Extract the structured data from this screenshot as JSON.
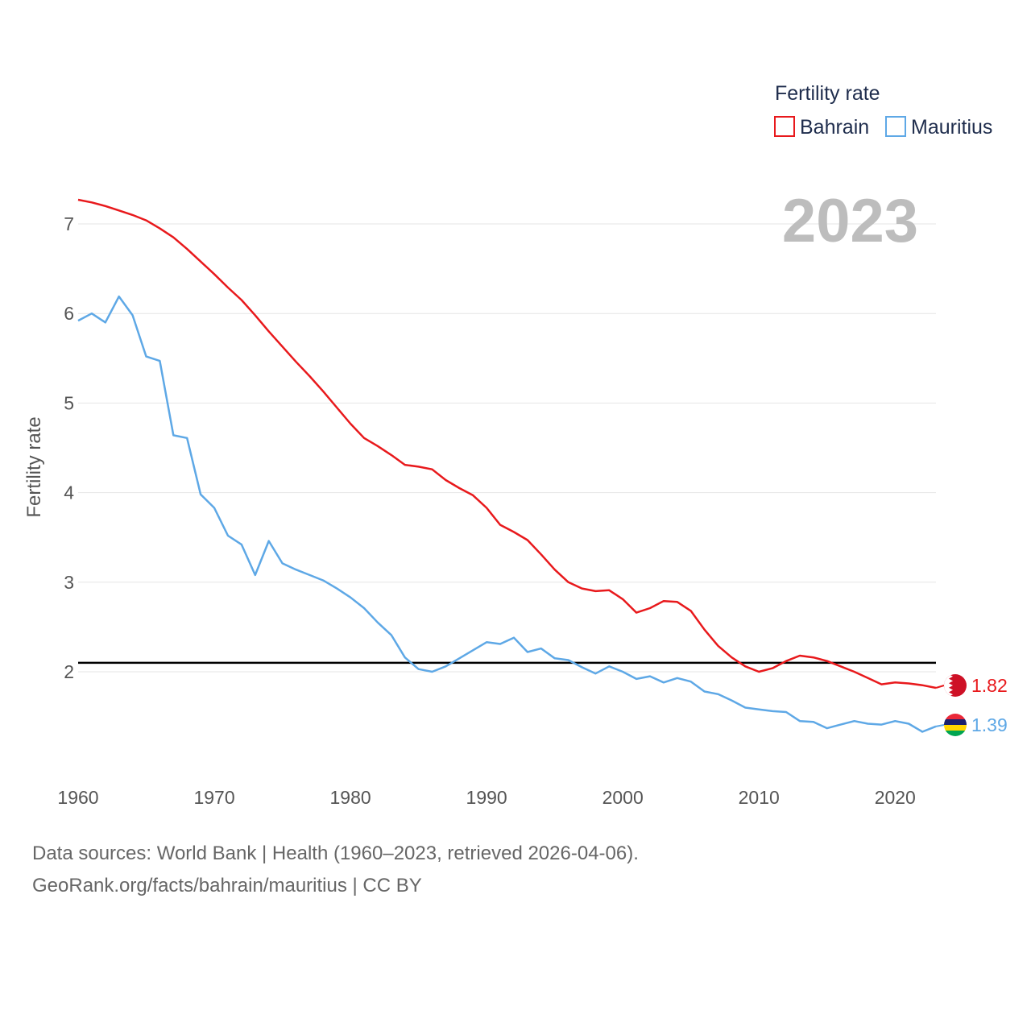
{
  "chart_data": {
    "type": "line",
    "title": "",
    "year_overlay": "2023",
    "legend_title": "Fertility rate",
    "xlabel": "",
    "ylabel": "Fertility rate",
    "xlim": [
      1960,
      2023
    ],
    "ylim": [
      1.0,
      7.5
    ],
    "x_ticks": [
      1960,
      1970,
      1980,
      1990,
      2000,
      2010,
      2020
    ],
    "y_ticks": [
      2,
      3,
      4,
      5,
      6,
      7
    ],
    "reference_line": {
      "y": 2.1,
      "color": "#000000"
    },
    "x": [
      1960,
      1961,
      1962,
      1963,
      1964,
      1965,
      1966,
      1967,
      1968,
      1969,
      1970,
      1971,
      1972,
      1973,
      1974,
      1975,
      1976,
      1977,
      1978,
      1979,
      1980,
      1981,
      1982,
      1983,
      1984,
      1985,
      1986,
      1987,
      1988,
      1989,
      1990,
      1991,
      1992,
      1993,
      1994,
      1995,
      1996,
      1997,
      1998,
      1999,
      2000,
      2001,
      2002,
      2003,
      2004,
      2005,
      2006,
      2007,
      2008,
      2009,
      2010,
      2011,
      2012,
      2013,
      2014,
      2015,
      2016,
      2017,
      2018,
      2019,
      2020,
      2021,
      2022,
      2023
    ],
    "series": [
      {
        "name": "Bahrain",
        "color": "#e8191c",
        "end_label": "1.82",
        "flag": "bahrain-flag",
        "values": [
          7.27,
          7.24,
          7.2,
          7.15,
          7.1,
          7.04,
          6.95,
          6.85,
          6.72,
          6.58,
          6.44,
          6.29,
          6.15,
          5.98,
          5.8,
          5.63,
          5.46,
          5.3,
          5.13,
          4.95,
          4.77,
          4.61,
          4.52,
          4.42,
          4.31,
          4.29,
          4.26,
          4.14,
          4.05,
          3.97,
          3.83,
          3.64,
          3.56,
          3.47,
          3.31,
          3.14,
          3.0,
          2.93,
          2.9,
          2.91,
          2.81,
          2.66,
          2.71,
          2.79,
          2.78,
          2.68,
          2.47,
          2.29,
          2.16,
          2.06,
          2.0,
          2.04,
          2.12,
          2.18,
          2.16,
          2.12,
          2.06,
          2.0,
          1.93,
          1.86,
          1.88,
          1.87,
          1.85,
          1.82
        ]
      },
      {
        "name": "Mauritius",
        "color": "#5ea8e6",
        "end_label": "1.39",
        "flag": "mauritius-flag",
        "values": [
          5.92,
          6.0,
          5.9,
          6.19,
          5.98,
          5.52,
          5.47,
          4.64,
          4.61,
          3.98,
          3.83,
          3.52,
          3.42,
          3.08,
          3.46,
          3.21,
          3.14,
          3.08,
          3.02,
          2.93,
          2.83,
          2.71,
          2.55,
          2.41,
          2.16,
          2.03,
          2.0,
          2.06,
          2.15,
          2.24,
          2.33,
          2.31,
          2.38,
          2.22,
          2.26,
          2.15,
          2.13,
          2.05,
          1.98,
          2.06,
          2.0,
          1.92,
          1.95,
          1.88,
          1.93,
          1.89,
          1.78,
          1.75,
          1.68,
          1.6,
          1.58,
          1.56,
          1.55,
          1.45,
          1.44,
          1.37,
          1.41,
          1.45,
          1.42,
          1.41,
          1.45,
          1.42,
          1.33,
          1.39
        ]
      }
    ]
  },
  "footer": {
    "line1": "Data sources: World Bank | Health (1960–2023, retrieved 2026-04-06).",
    "line2": "GeoRank.org/facts/bahrain/mauritius | CC BY"
  }
}
